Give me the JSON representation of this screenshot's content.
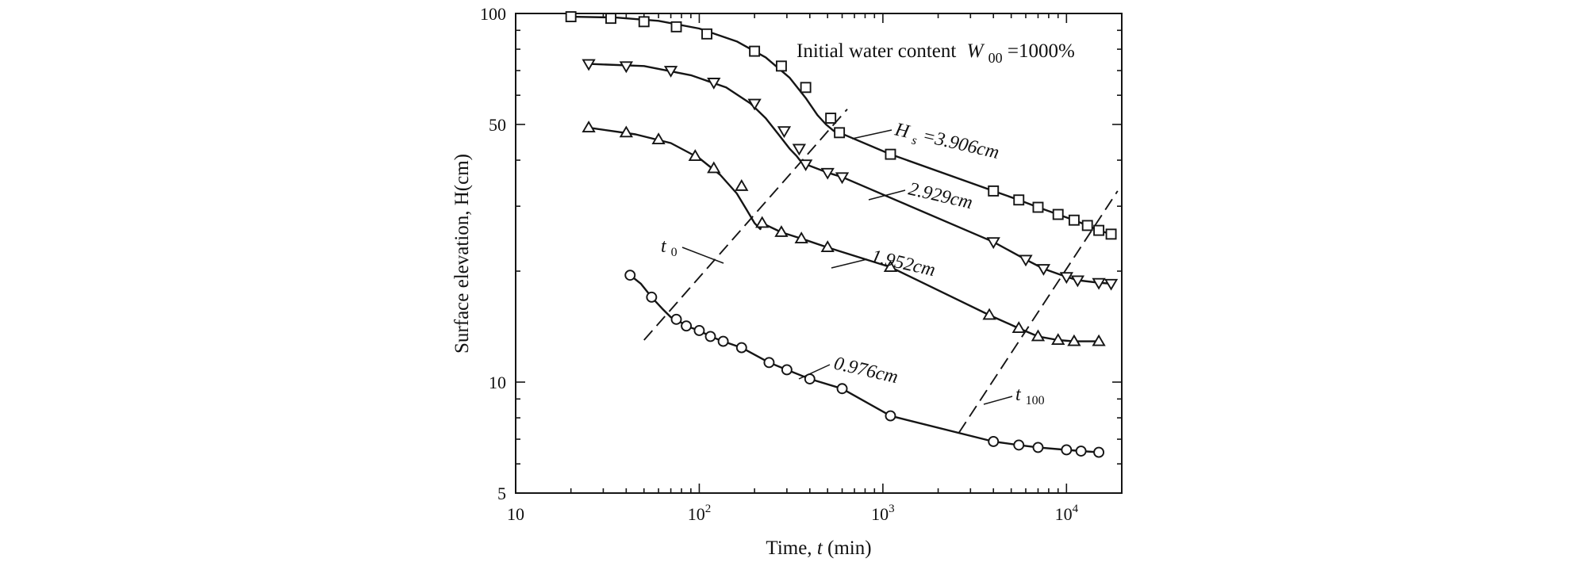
{
  "chart_data": {
    "type": "line",
    "title": "Initial water content",
    "title_symbol": "W",
    "title_subscript": "00",
    "title_value": "=1000%",
    "xlabel_prefix": "Time, ",
    "xlabel_symbol": "t",
    "xlabel_suffix": "(min)",
    "ylabel": "Surface elevation, H(cm)",
    "xscale": "log",
    "yscale": "log",
    "xlim": [
      10,
      20000
    ],
    "ylim": [
      5,
      100
    ],
    "x_ticks": [
      {
        "value": 10,
        "label": "10",
        "base": "10",
        "exp": ""
      },
      {
        "value": 100,
        "label": "10^2",
        "base": "10",
        "exp": "2"
      },
      {
        "value": 1000,
        "label": "10^3",
        "base": "10",
        "exp": "3"
      },
      {
        "value": 10000,
        "label": "10^4",
        "base": "10",
        "exp": "4"
      }
    ],
    "y_ticks": [
      {
        "value": 100,
        "label": "100"
      },
      {
        "value": 50,
        "label": "50"
      },
      {
        "value": 10,
        "label": "10"
      },
      {
        "value": 5,
        "label": "5"
      }
    ],
    "series": [
      {
        "name": "Hs = 3.906cm",
        "label_symbol": "H",
        "label_subscript": "s",
        "label_value": " =3.906cm",
        "marker": "square",
        "x": [
          20,
          33,
          50,
          75,
          110,
          200,
          280,
          380,
          520,
          580,
          1100,
          4000,
          5500,
          7000,
          9000,
          11000,
          13000,
          15000,
          17500
        ],
        "y": [
          98,
          97,
          95,
          92,
          88,
          79,
          72,
          63,
          52,
          47.5,
          41.5,
          33,
          31.2,
          29.8,
          28.5,
          27.5,
          26.6,
          25.8,
          25.2
        ]
      },
      {
        "name": "2.929cm",
        "label_value": "2.929cm",
        "marker": "triangle-down",
        "x": [
          25,
          40,
          70,
          120,
          200,
          290,
          350,
          380,
          500,
          600,
          4000,
          6000,
          7500,
          10000,
          11500,
          15000,
          17500
        ],
        "y": [
          73,
          72,
          70,
          65,
          57,
          48,
          43,
          39,
          37,
          36,
          24,
          21.5,
          20.3,
          19.3,
          18.9,
          18.6,
          18.5
        ]
      },
      {
        "name": "1.952cm",
        "label_value": "1.952cm",
        "marker": "triangle-up",
        "x": [
          25,
          40,
          60,
          95,
          120,
          170,
          220,
          280,
          360,
          500,
          1100,
          3800,
          5500,
          7000,
          9000,
          11000,
          15000
        ],
        "y": [
          49,
          47.5,
          45.5,
          41,
          38,
          34,
          27,
          25.5,
          24.5,
          23.2,
          20.5,
          15.2,
          14,
          13.3,
          13,
          12.9,
          12.9
        ]
      },
      {
        "name": "0.976cm",
        "label_value": "0.976cm",
        "marker": "circle",
        "x": [
          42,
          55,
          75,
          85,
          100,
          115,
          135,
          170,
          240,
          300,
          400,
          600,
          1100,
          4000,
          5500,
          7000,
          10000,
          12000,
          15000
        ],
        "y": [
          19.5,
          17,
          14.8,
          14.2,
          13.8,
          13.3,
          12.9,
          12.4,
          11.3,
          10.8,
          10.2,
          9.6,
          8.1,
          6.9,
          6.75,
          6.65,
          6.55,
          6.5,
          6.45
        ]
      }
    ],
    "bend_curves": [
      {
        "series": "Hs = 3.906cm",
        "x": [
          20,
          35,
          60,
          100,
          160,
          230,
          310,
          380,
          440,
          490,
          540,
          580
        ],
        "y": [
          98,
          97.5,
          95.5,
          91,
          84,
          76,
          67,
          59,
          53,
          50,
          48,
          47.5
        ]
      },
      {
        "series": "2.929cm",
        "x": [
          25,
          50,
          90,
          140,
          190,
          230,
          270,
          310,
          340,
          360,
          380
        ],
        "y": [
          73,
          72,
          68,
          63,
          57,
          52,
          47,
          43,
          41,
          39.5,
          39
        ]
      },
      {
        "series": "1.952cm",
        "x": [
          25,
          45,
          70,
          100,
          130,
          160,
          180,
          200,
          215
        ],
        "y": [
          49,
          47,
          44.5,
          40.5,
          36.5,
          32.5,
          29.5,
          27,
          26
        ]
      },
      {
        "series": "0.976cm",
        "x": [
          42,
          48,
          55,
          63,
          70,
          75
        ],
        "y": [
          19.5,
          18.5,
          17,
          15.8,
          15,
          14.8
        ]
      }
    ],
    "reference_lines": [
      {
        "name": "t0",
        "label_symbol": "t",
        "label_subscript": "0",
        "x": [
          50,
          640
        ],
        "y": [
          13,
          55
        ]
      },
      {
        "name": "t100",
        "label_symbol": "t",
        "label_subscript": "100",
        "x": [
          2600,
          19000
        ],
        "y": [
          7.3,
          33
        ]
      }
    ]
  }
}
